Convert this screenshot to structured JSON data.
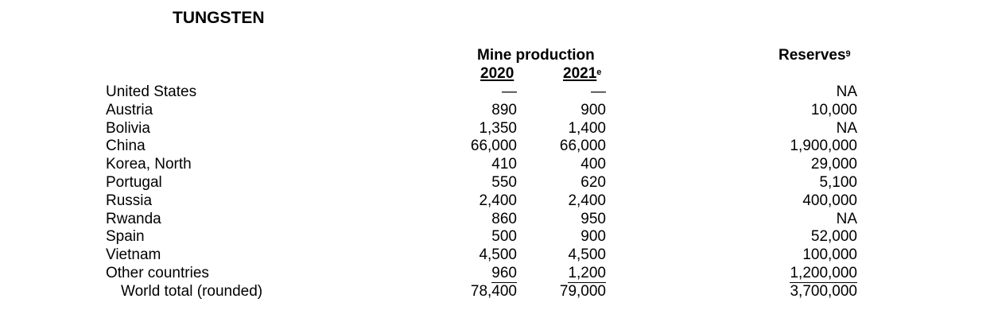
{
  "title": "TUNGSTEN",
  "header": {
    "group": "Mine production",
    "years": [
      "2020",
      "2021"
    ],
    "year_note": "e",
    "reserves": "Reserves",
    "reserves_note": "9"
  },
  "table": {
    "rows": [
      [
        "United States",
        "—",
        "—",
        "NA"
      ],
      [
        "Austria",
        "890",
        "900",
        "10,000"
      ],
      [
        "Bolivia",
        "1,350",
        "1,400",
        "NA"
      ],
      [
        "China",
        "66,000",
        "66,000",
        "1,900,000"
      ],
      [
        "Korea, North",
        "410",
        "400",
        "29,000"
      ],
      [
        "Portugal",
        "550",
        "620",
        "5,100"
      ],
      [
        "Russia",
        "2,400",
        "2,400",
        "400,000"
      ],
      [
        "Rwanda",
        "860",
        "950",
        "NA"
      ],
      [
        "Spain",
        "500",
        "900",
        "52,000"
      ],
      [
        "Vietnam",
        "4,500",
        "4,500",
        "100,000"
      ],
      [
        "Other countries",
        "960",
        "1,200",
        "1,200,000"
      ],
      [
        "World total (rounded)",
        "78,400",
        "79,000",
        "3,700,000"
      ]
    ]
  }
}
